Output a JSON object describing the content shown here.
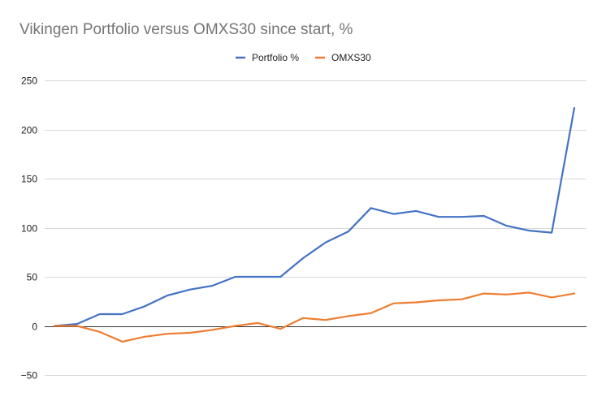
{
  "chart_data": {
    "type": "line",
    "title": "Vikingen Portfolio versus OMXS30 since start, %",
    "xlabel": "",
    "ylabel": "",
    "ylim": [
      -50,
      250
    ],
    "yticks": [
      250,
      200,
      150,
      100,
      50,
      0,
      -50
    ],
    "y_tick_labels": [
      "250",
      "200",
      "150",
      "100",
      "50",
      "0",
      "−50"
    ],
    "grid": true,
    "legend": "top-center",
    "x": [
      1,
      2,
      3,
      4,
      5,
      6,
      7,
      8,
      9,
      10,
      11,
      12,
      13,
      14,
      15,
      16,
      17,
      18,
      19,
      20,
      21,
      22,
      23,
      24
    ],
    "series": [
      {
        "name": "Portfolio %",
        "color": "#4472c4",
        "values": [
          0,
          2,
          12,
          12,
          20,
          31,
          37,
          41,
          50,
          50,
          50,
          69,
          85,
          96,
          120,
          114,
          117,
          111,
          111,
          112,
          102,
          97,
          95,
          222
        ]
      },
      {
        "name": "OMXS30",
        "color": "#ed7d31",
        "values": [
          0,
          0,
          -6,
          -16,
          -11,
          -8,
          -7,
          -4,
          0,
          3,
          -3,
          8,
          6,
          10,
          13,
          23,
          24,
          26,
          27,
          33,
          32,
          34,
          29,
          33
        ]
      }
    ]
  }
}
